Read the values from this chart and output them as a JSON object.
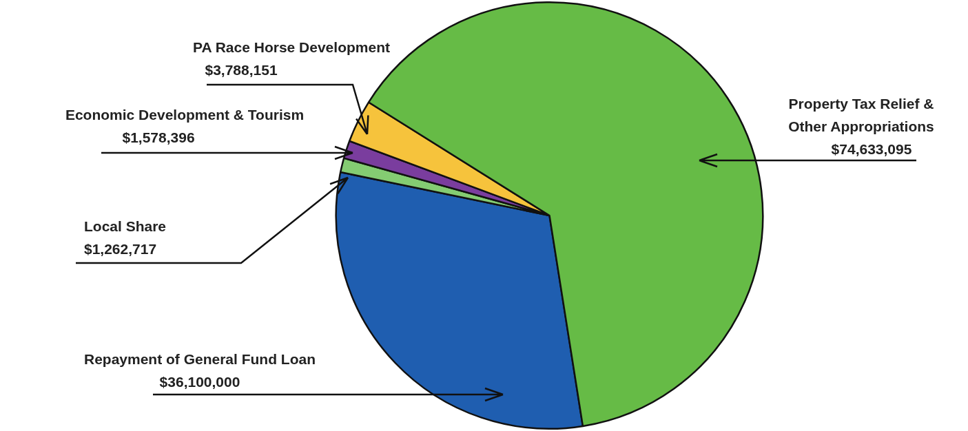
{
  "chart_data": {
    "type": "pie",
    "categories": [
      "Repayment of General Fund Loan",
      "Local Share",
      "Economic Development & Tourism",
      "PA Race Horse Development",
      "Property Tax Relief & Other Appropriations"
    ],
    "values": [
      36100000,
      1262717,
      1578396,
      3788151,
      74633095
    ],
    "value_labels": [
      "$36,100,000",
      "$1,262,717",
      "$1,578,396",
      "$3,788,151",
      "$74,633,095"
    ],
    "colors": [
      "#1f5eb0",
      "#84cc72",
      "#7a3d9e",
      "#f6c33c",
      "#66bb46"
    ]
  }
}
